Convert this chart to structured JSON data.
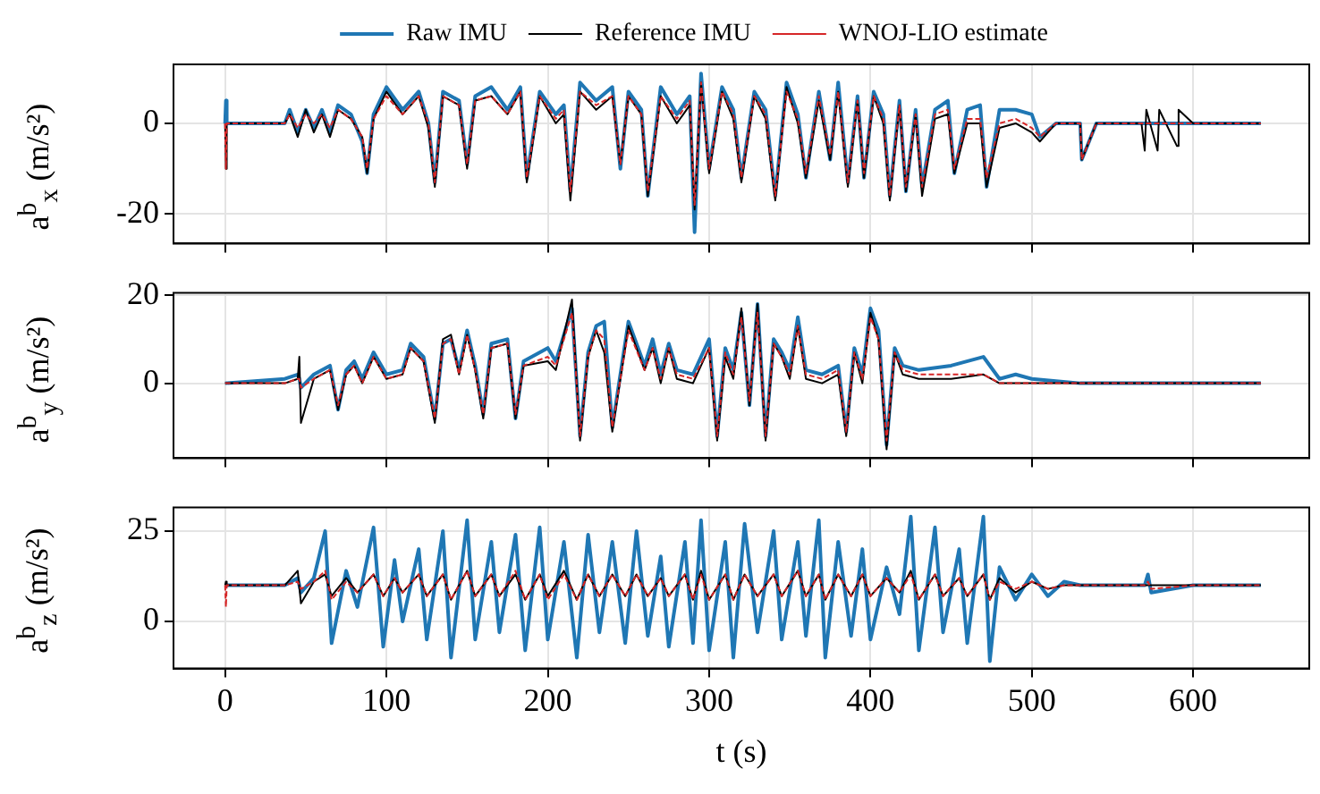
{
  "chart_data": [
    {
      "type": "line",
      "ylabel": "a$^{b}$$_{x}$ (m/s²)",
      "xlim": [
        -32,
        672
      ],
      "xticks": [
        0,
        100,
        200,
        300,
        400,
        500,
        600
      ],
      "ylim": [
        -26.5,
        13
      ],
      "yticks": [
        -20,
        0
      ],
      "grid": true,
      "legend": "top",
      "tick_labels": "y",
      "marker": "none",
      "x": [
        0,
        0.5,
        1,
        37,
        40,
        45,
        50,
        55,
        60,
        65,
        70,
        78,
        85,
        88,
        92,
        100,
        110,
        120,
        126,
        130,
        135,
        145,
        150,
        155,
        165,
        175,
        183,
        187,
        195,
        205,
        210,
        214,
        220,
        230,
        240,
        245,
        250,
        258,
        262,
        270,
        280,
        288,
        291,
        295,
        300,
        308,
        315,
        320,
        328,
        335,
        341,
        348,
        355,
        360,
        368,
        375,
        380,
        386,
        392,
        396,
        402,
        408,
        412,
        418,
        422,
        428,
        432,
        440,
        448,
        452,
        460,
        468,
        472,
        480,
        490,
        500,
        505,
        515,
        525,
        530,
        531,
        540,
        568,
        570,
        571,
        578,
        579,
        590,
        591,
        600,
        642
      ],
      "series": [
        {
          "name": "Raw IMU",
          "color": "#1f77b4",
          "line_style": "solid",
          "values": [
            0,
            5,
            0,
            0,
            3,
            -2,
            3,
            -1,
            3,
            -2,
            4,
            2,
            -4,
            -11,
            2,
            8,
            3,
            7,
            0,
            -13,
            7,
            5,
            -9,
            6,
            8,
            3,
            8,
            -12,
            7,
            2,
            4,
            -15,
            9,
            5,
            8,
            -10,
            7,
            3,
            -16,
            8,
            2,
            6,
            -24,
            11,
            -10,
            8,
            3,
            -12,
            7,
            3,
            -16,
            9,
            2,
            -12,
            7,
            -8,
            9,
            -13,
            6,
            -12,
            7,
            2,
            -16,
            5,
            -15,
            3,
            -14,
            3,
            5,
            -11,
            3,
            4,
            -14,
            3,
            3,
            2,
            -3,
            0,
            0,
            0,
            -8,
            0,
            0,
            0,
            0,
            0,
            0,
            0,
            0,
            0,
            0
          ]
        },
        {
          "name": "Reference IMU",
          "color": "#000000",
          "line_style": "solid",
          "values": [
            0,
            -10,
            0,
            0,
            2,
            -3,
            3,
            -2,
            2,
            -3,
            3,
            1,
            -3,
            -11,
            1,
            7,
            2,
            6,
            -1,
            -14,
            6,
            4,
            -10,
            5,
            6,
            2,
            7,
            -13,
            6,
            0,
            2,
            -17,
            7,
            3,
            6,
            -9,
            6,
            2,
            -16,
            6,
            0,
            4,
            -19,
            9,
            -11,
            7,
            1,
            -13,
            6,
            1,
            -17,
            8,
            0,
            -12,
            5,
            -8,
            7,
            -14,
            5,
            -12,
            6,
            0,
            -17,
            4,
            -15,
            2,
            -16,
            1,
            2,
            -11,
            0,
            0,
            -14,
            -1,
            0,
            -2,
            -4,
            0,
            0,
            0,
            -8,
            0,
            0,
            -6,
            3,
            -6,
            3,
            -5,
            3,
            0,
            0
          ]
        },
        {
          "name": "WNOJ-LIO estimate",
          "color": "#d62728",
          "line_style": "dashed",
          "values": [
            0,
            -10,
            0,
            0,
            2,
            -1,
            2,
            0,
            2,
            -1,
            3,
            1,
            -3,
            -10,
            1,
            6,
            2,
            6,
            0,
            -13,
            6,
            4,
            -9,
            5,
            6,
            2,
            7,
            -12,
            6,
            1,
            3,
            -15,
            7,
            4,
            6,
            -9,
            6,
            2,
            -15,
            6,
            1,
            5,
            -18,
            9,
            -10,
            7,
            2,
            -12,
            6,
            2,
            -16,
            7,
            1,
            -11,
            6,
            -7,
            7,
            -13,
            5,
            -11,
            6,
            1,
            -16,
            4,
            -14,
            2,
            -14,
            2,
            3,
            -10,
            1,
            1,
            -12,
            0,
            1,
            -1,
            -3,
            0,
            0,
            0,
            -8,
            0,
            0,
            0,
            0,
            0,
            0,
            0,
            0,
            0,
            0
          ]
        }
      ]
    },
    {
      "type": "line",
      "ylabel": "a$^{b}$$_{y}$ (m/s²)",
      "xlim": [
        -32,
        672
      ],
      "xticks": [
        0,
        100,
        200,
        300,
        400,
        500,
        600
      ],
      "ylim": [
        -17,
        20.5
      ],
      "yticks": [
        0,
        20
      ],
      "grid": true,
      "tick_labels": "y",
      "marker": "none",
      "x": [
        0,
        37,
        45,
        46,
        47,
        55,
        65,
        70,
        75,
        80,
        85,
        92,
        100,
        110,
        115,
        123,
        130,
        135,
        140,
        145,
        150,
        155,
        160,
        165,
        175,
        180,
        185,
        200,
        205,
        215,
        220,
        225,
        230,
        235,
        240,
        250,
        260,
        265,
        270,
        275,
        280,
        290,
        300,
        305,
        310,
        315,
        320,
        325,
        330,
        335,
        340,
        345,
        350,
        355,
        360,
        370,
        380,
        385,
        390,
        395,
        400,
        405,
        410,
        415,
        420,
        430,
        450,
        470,
        480,
        490,
        500,
        530,
        540,
        600,
        642
      ],
      "series": [
        {
          "color": "#1f77b4",
          "line_style": "solid",
          "values": [
            0,
            1,
            2,
            1,
            -1,
            2,
            4,
            -6,
            3,
            5,
            1,
            7,
            2,
            3,
            9,
            6,
            -8,
            9,
            10,
            3,
            12,
            4,
            -7,
            9,
            10,
            -8,
            5,
            8,
            5,
            17,
            -12,
            7,
            13,
            14,
            -10,
            14,
            4,
            10,
            2,
            9,
            3,
            2,
            10,
            -12,
            8,
            3,
            16,
            -5,
            18,
            -12,
            10,
            7,
            3,
            15,
            3,
            2,
            4,
            -11,
            8,
            2,
            17,
            12,
            -14,
            8,
            4,
            3,
            4,
            6,
            1,
            2,
            1,
            0,
            0,
            0,
            0
          ]
        },
        {
          "color": "#000000",
          "line_style": "solid",
          "values": [
            0,
            0,
            1,
            6,
            -9,
            1,
            3,
            -6,
            2,
            4,
            0,
            6,
            1,
            2,
            8,
            5,
            -9,
            10,
            11,
            2,
            11,
            3,
            -8,
            8,
            9,
            -8,
            4,
            5,
            3,
            19,
            -13,
            6,
            12,
            7,
            -11,
            13,
            3,
            8,
            0,
            8,
            1,
            0,
            8,
            -13,
            6,
            1,
            17,
            -5,
            18,
            -13,
            9,
            6,
            1,
            13,
            1,
            0,
            2,
            -12,
            7,
            0,
            16,
            10,
            -15,
            7,
            2,
            1,
            1,
            2,
            0,
            0,
            0,
            0,
            0,
            0,
            0
          ]
        },
        {
          "color": "#d62728",
          "line_style": "dashed",
          "values": [
            0,
            0,
            1,
            1,
            -1,
            1,
            3,
            -5,
            2,
            4,
            0,
            6,
            1,
            2,
            8,
            5,
            -8,
            9,
            10,
            2,
            11,
            3,
            -7,
            8,
            9,
            -7,
            4,
            6,
            4,
            16,
            -12,
            6,
            12,
            10,
            -10,
            12,
            3,
            8,
            1,
            8,
            2,
            1,
            8,
            -12,
            7,
            2,
            15,
            -4,
            16,
            -12,
            9,
            6,
            2,
            13,
            2,
            1,
            3,
            -11,
            7,
            1,
            15,
            10,
            -13,
            7,
            3,
            2,
            2,
            2,
            0,
            0,
            0,
            0,
            0,
            0,
            0
          ]
        }
      ]
    },
    {
      "type": "line",
      "ylabel": "a$^{b}$$_{z}$ (m/s²)",
      "xlabel": "t (s)",
      "xlim": [
        -32,
        672
      ],
      "xticks": [
        0,
        100,
        200,
        300,
        400,
        500,
        600
      ],
      "ylim": [
        -13,
        31.5
      ],
      "yticks": [
        0,
        25
      ],
      "grid": true,
      "marker": "none",
      "x": [
        0,
        0.5,
        1,
        37,
        45,
        47,
        55,
        62,
        66,
        75,
        82,
        92,
        98,
        105,
        110,
        120,
        125,
        135,
        140,
        150,
        155,
        165,
        170,
        180,
        186,
        195,
        200,
        210,
        218,
        225,
        232,
        240,
        248,
        255,
        262,
        270,
        275,
        285,
        290,
        295,
        300,
        310,
        315,
        322,
        330,
        340,
        345,
        355,
        360,
        368,
        372,
        380,
        388,
        395,
        400,
        410,
        418,
        425,
        430,
        440,
        445,
        455,
        460,
        470,
        474,
        480,
        490,
        500,
        510,
        520,
        530,
        570,
        572,
        574,
        600,
        642
      ],
      "series": [
        {
          "color": "#1f77b4",
          "line_style": "solid",
          "values": [
            10,
            10,
            10,
            10,
            12,
            8,
            12,
            25,
            -6,
            14,
            4,
            26,
            -7,
            17,
            0,
            20,
            -5,
            25,
            -10,
            28,
            -5,
            22,
            -3,
            24,
            -8,
            26,
            -5,
            22,
            -10,
            24,
            -3,
            22,
            -6,
            25,
            -4,
            18,
            -7,
            22,
            -6,
            28,
            -8,
            22,
            -10,
            27,
            -3,
            25,
            -5,
            22,
            -4,
            28,
            -10,
            22,
            -4,
            20,
            -5,
            15,
            2,
            29,
            -8,
            26,
            -3,
            20,
            -6,
            29,
            -11,
            15,
            6,
            13,
            7,
            11,
            10,
            10,
            13,
            8,
            10,
            10
          ]
        },
        {
          "color": "#000000",
          "line_style": "solid",
          "values": [
            10,
            11,
            10,
            10,
            14,
            5,
            11,
            13,
            7,
            12,
            8,
            13,
            7,
            12,
            8,
            13,
            7,
            13,
            6,
            14,
            7,
            13,
            7,
            13,
            6,
            13,
            7,
            14,
            6,
            13,
            7,
            13,
            7,
            13,
            7,
            12,
            7,
            13,
            6,
            14,
            6,
            13,
            6,
            13,
            7,
            13,
            7,
            14,
            7,
            13,
            6,
            13,
            7,
            13,
            7,
            12,
            8,
            14,
            6,
            13,
            7,
            12,
            7,
            13,
            6,
            12,
            8,
            11,
            9,
            10,
            10,
            10,
            10,
            10,
            10,
            10
          ]
        },
        {
          "color": "#d62728",
          "line_style": "dashed",
          "values": [
            10,
            4,
            10,
            10,
            11,
            9,
            11,
            14,
            6,
            11,
            8,
            13,
            7,
            12,
            8,
            13,
            7,
            13,
            6,
            14,
            7,
            13,
            7,
            14,
            6,
            13,
            6,
            13,
            6,
            13,
            7,
            13,
            7,
            13,
            7,
            12,
            7,
            13,
            6,
            13,
            6,
            13,
            6,
            13,
            7,
            13,
            7,
            14,
            7,
            13,
            6,
            13,
            7,
            13,
            7,
            12,
            8,
            13,
            6,
            13,
            7,
            12,
            7,
            13,
            6,
            11,
            9,
            11,
            9,
            10,
            10,
            10,
            11,
            9,
            10,
            10
          ]
        }
      ]
    }
  ]
}
